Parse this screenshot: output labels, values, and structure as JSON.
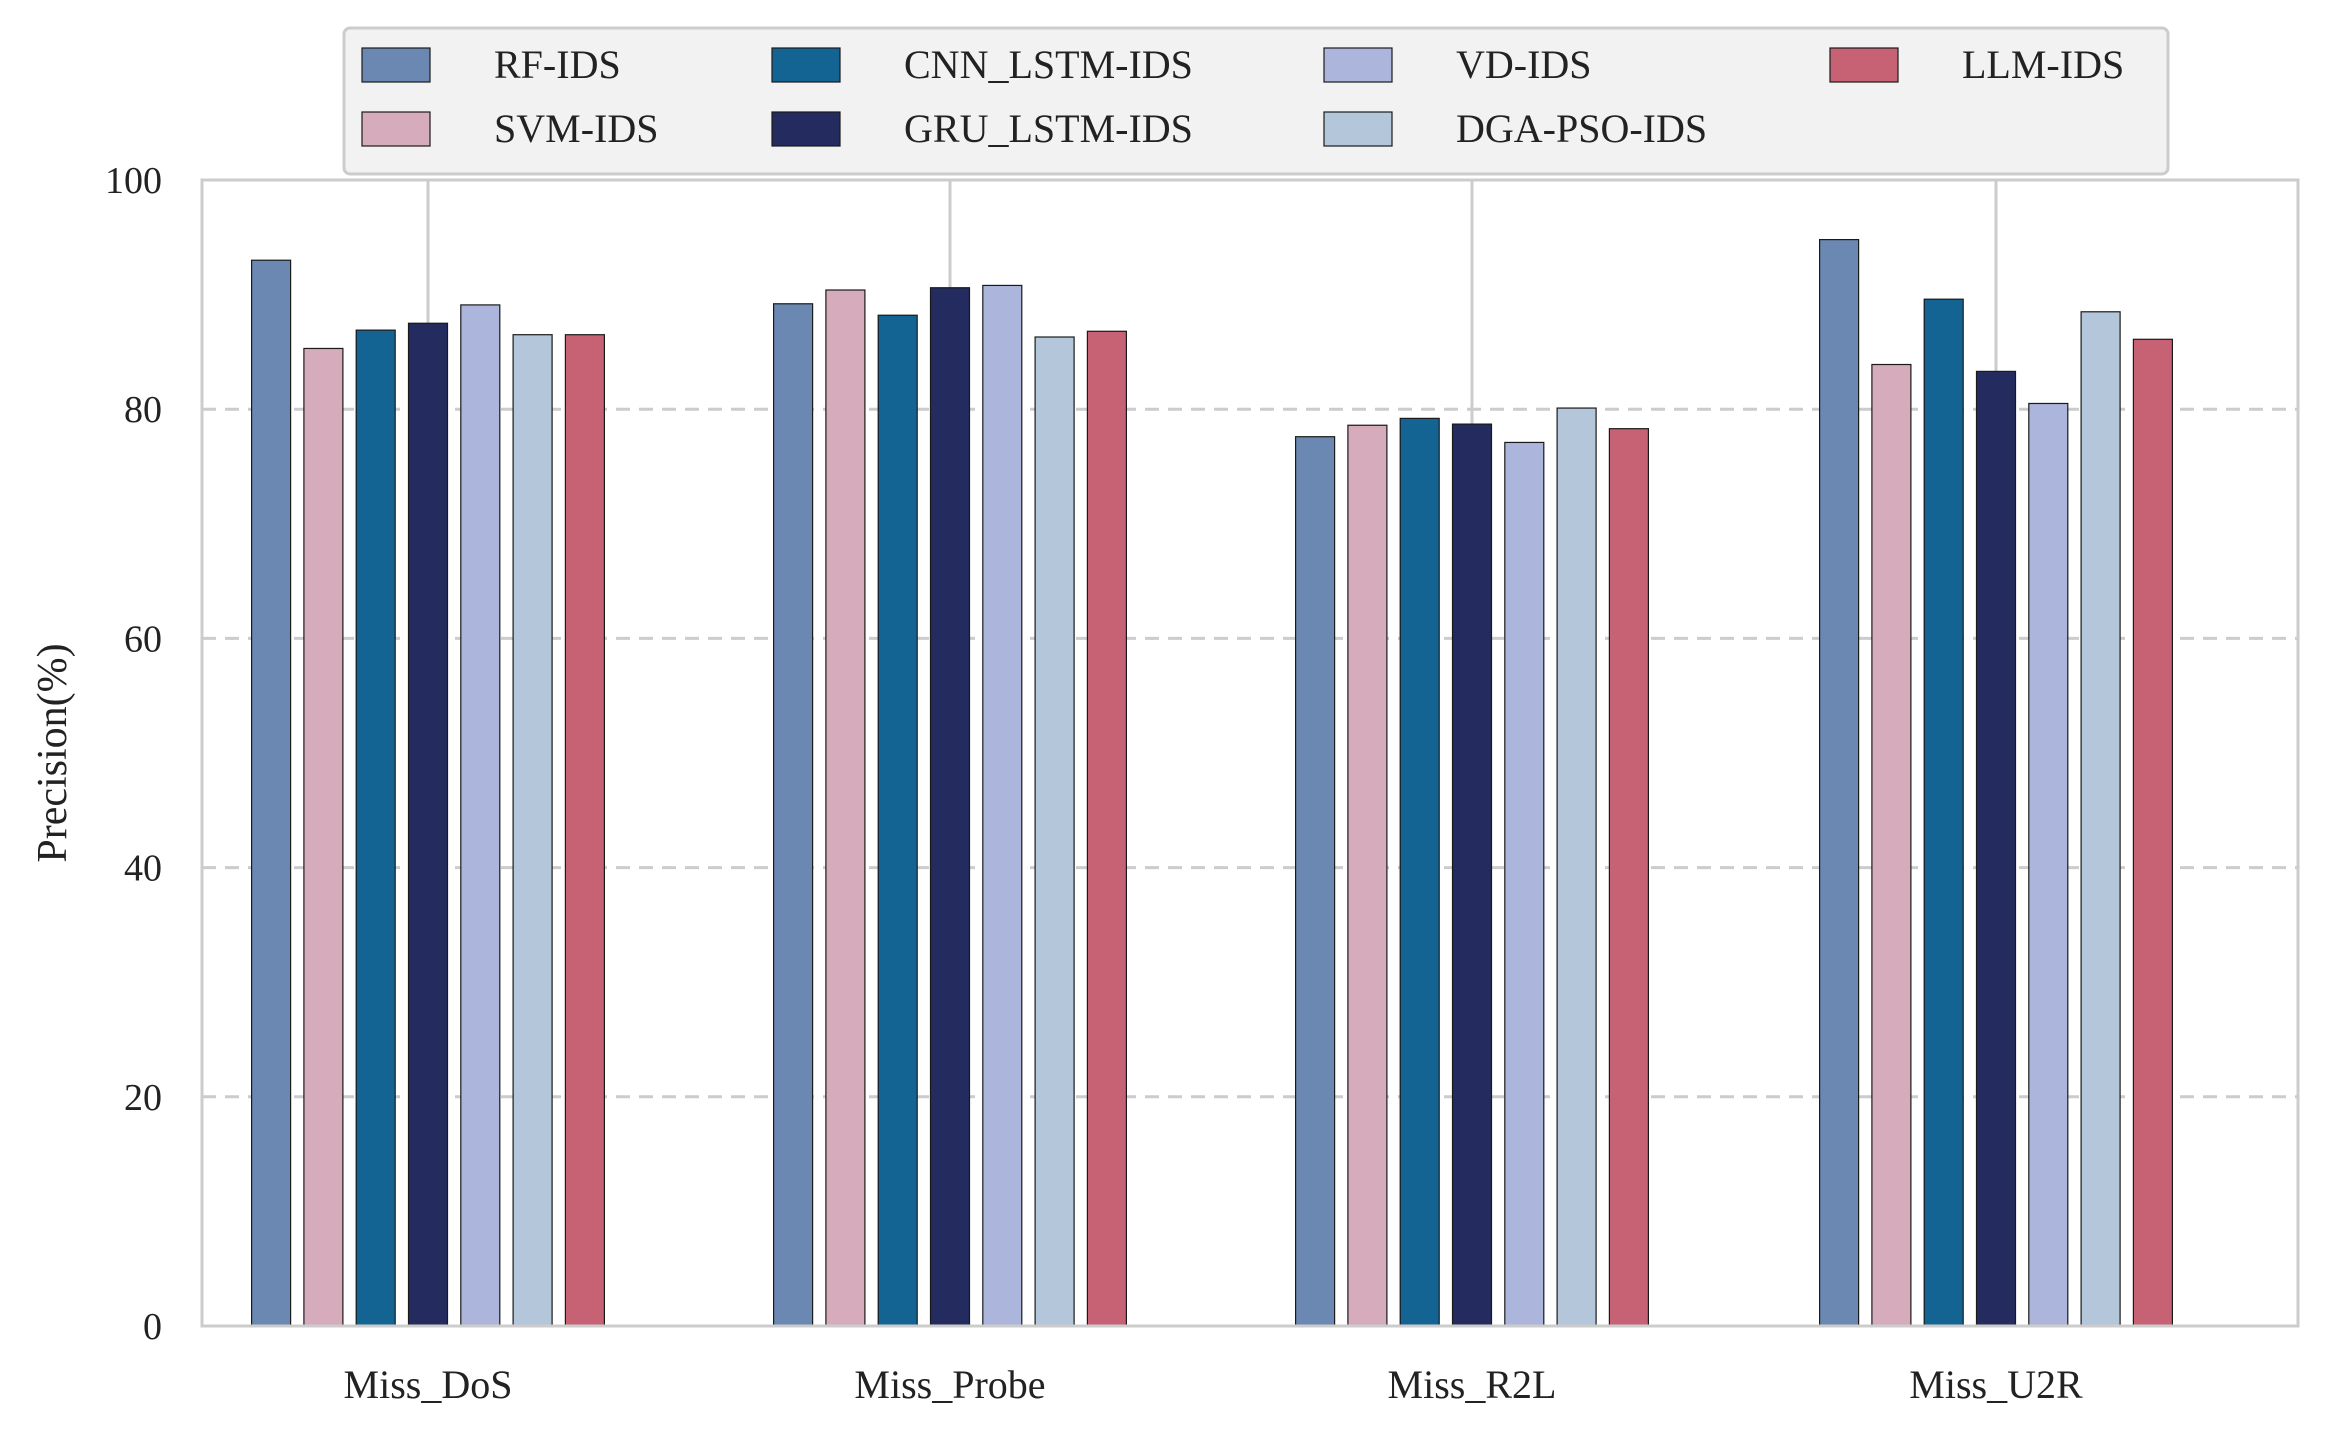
{
  "chart_data": {
    "type": "bar",
    "title": "",
    "xlabel": "",
    "ylabel": "Precision(%)",
    "ylim": [
      0,
      100
    ],
    "yticks": [
      0,
      20,
      40,
      60,
      80,
      100
    ],
    "grid": "horizontal dashed",
    "legend_position": "top, above plot, 4 columns",
    "categories": [
      "Miss_DoS",
      "Miss_Probe",
      "Miss_R2L",
      "Miss_U2R"
    ],
    "series": [
      {
        "name": "RF-IDS",
        "color": "#6a88b2",
        "values": [
          93.0,
          89.2,
          77.6,
          94.8
        ]
      },
      {
        "name": "SVM-IDS",
        "color": "#d6abbc",
        "values": [
          85.3,
          90.4,
          78.6,
          83.9
        ]
      },
      {
        "name": "CNN_LSTM-IDS",
        "color": "#136493",
        "values": [
          86.9,
          88.2,
          79.2,
          89.6
        ]
      },
      {
        "name": "GRU_LSTM-IDS",
        "color": "#242b5e",
        "values": [
          87.5,
          90.6,
          78.7,
          83.3
        ]
      },
      {
        "name": "VD-IDS",
        "color": "#acb6dc",
        "values": [
          89.1,
          90.8,
          77.1,
          80.5
        ]
      },
      {
        "name": "DGA-PSO-IDS",
        "color": "#b4c6da",
        "values": [
          86.5,
          86.3,
          80.1,
          88.5
        ]
      },
      {
        "name": "LLM-IDS",
        "color": "#c66273",
        "values": [
          86.5,
          86.8,
          78.3,
          86.1
        ]
      }
    ]
  }
}
